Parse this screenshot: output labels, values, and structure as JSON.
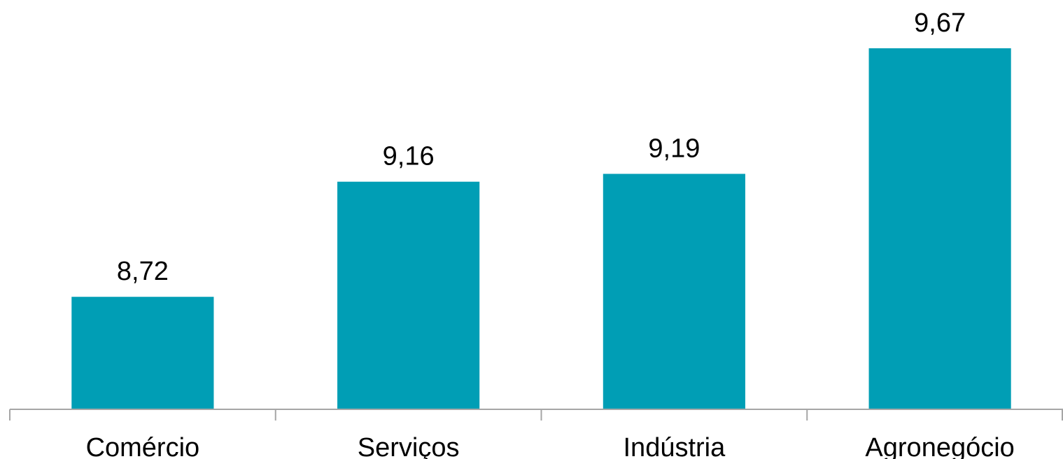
{
  "chart_data": {
    "type": "bar",
    "categories": [
      "Comércio",
      "Serviços",
      "Indústria",
      "Agronegócio"
    ],
    "values": [
      8.72,
      9.16,
      9.19,
      9.67
    ],
    "data_labels": [
      "8,72",
      "9,16",
      "9,19",
      "9,67"
    ],
    "title": "",
    "xlabel": "",
    "ylabel": "",
    "grid": false,
    "legend": "none",
    "bar_color": "#009EB5",
    "axis_color": "#A6A6A6"
  }
}
